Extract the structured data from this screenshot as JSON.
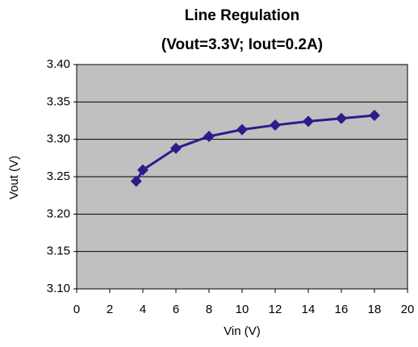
{
  "chart_data": {
    "type": "line",
    "title": "Line Regulation",
    "subtitle": "(Vout=3.3V; Iout=0.2A)",
    "x_label": "Vin (V)",
    "y_label": "Vout (V)",
    "x": [
      3.6,
      4,
      6,
      8,
      10,
      12,
      14,
      16,
      18
    ],
    "values": [
      3.244,
      3.259,
      3.288,
      3.304,
      3.313,
      3.319,
      3.324,
      3.328,
      3.332
    ],
    "color": "#2e1a8c",
    "xlim": [
      0,
      20
    ],
    "xticks": [
      0,
      2,
      4,
      6,
      8,
      10,
      12,
      14,
      16,
      18,
      20
    ],
    "ylim": [
      3.1,
      3.4
    ],
    "yticks": [
      {
        "value": 3.1,
        "label": "3.10"
      },
      3.15,
      {
        "value": 3.2,
        "label": "3.20"
      },
      3.25,
      {
        "value": 3.3,
        "label": "3.30"
      },
      3.35,
      {
        "value": 3.4,
        "label": "3.40"
      }
    ],
    "grid": true
  }
}
